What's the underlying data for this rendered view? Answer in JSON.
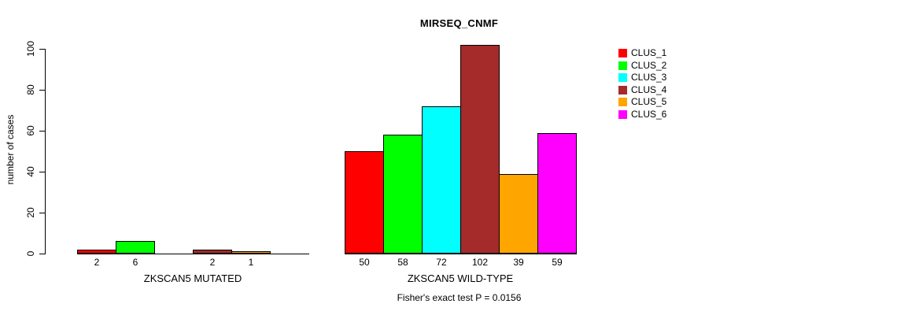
{
  "chart_data": {
    "type": "bar",
    "title": "MIRSEQ_CNMF",
    "ylabel": "number of cases",
    "xlabel": "",
    "ylim": [
      0,
      100
    ],
    "y_ticks": [
      0,
      20,
      40,
      60,
      80,
      100
    ],
    "grid": false,
    "legend_position": "right",
    "categories": [
      "ZKSCAN5 MUTATED",
      "ZKSCAN5 WILD-TYPE"
    ],
    "series": [
      {
        "name": "CLUS_1",
        "color": "#FF0000",
        "values": [
          2,
          50
        ]
      },
      {
        "name": "CLUS_2",
        "color": "#00FF00",
        "values": [
          6,
          58
        ]
      },
      {
        "name": "CLUS_3",
        "color": "#00FFFF",
        "values": [
          0,
          72
        ]
      },
      {
        "name": "CLUS_4",
        "color": "#A52A2A",
        "values": [
          2,
          102
        ]
      },
      {
        "name": "CLUS_5",
        "color": "#FFA500",
        "values": [
          1,
          39
        ]
      },
      {
        "name": "CLUS_6",
        "color": "#FF00FF",
        "values": [
          0,
          59
        ]
      }
    ],
    "bar_value_labels": "value printed under each bar; zero-value bars unlabeled",
    "annotation": "Fisher's exact test P = 0.0156"
  }
}
